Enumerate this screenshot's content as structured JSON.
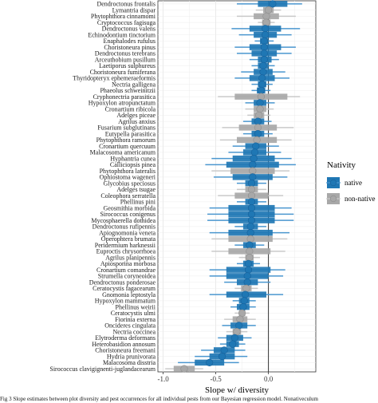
{
  "chart_data": {
    "type": "forest",
    "xlabel": "Slope w/ diversity",
    "xlim": [
      -1.05,
      0.45
    ],
    "x_ticks": [
      -1.0,
      -0.5,
      0.0
    ],
    "x_tick_labels": [
      "-1.0",
      "-0.5",
      "0.0"
    ],
    "reference_line": 0.0,
    "grid": true,
    "legend": {
      "title": "Nativity",
      "position": "right",
      "entries": [
        {
          "key": "native",
          "label": "native",
          "color": "#1f77b4"
        },
        {
          "key": "non-native",
          "label": "non-native",
          "color": "#a8a8a8"
        }
      ]
    },
    "rows": [
      {
        "label": "Dendroctonus frontalis",
        "nativity": "native",
        "estimate": 0.04,
        "inner": [
          -0.1,
          0.18
        ],
        "outer": [
          -0.3,
          0.32
        ]
      },
      {
        "label": "Lymantria dispar",
        "nativity": "non-native",
        "estimate": 0.0,
        "inner": [
          -0.05,
          0.05
        ],
        "outer": [
          -0.12,
          0.12
        ]
      },
      {
        "label": "Phytophthora cinnamomi",
        "nativity": "non-native",
        "estimate": -0.02,
        "inner": [
          -0.14,
          0.1
        ],
        "outer": [
          -0.3,
          0.26
        ]
      },
      {
        "label": "Cryptococcus fagisuga",
        "nativity": "non-native",
        "estimate": -0.02,
        "inner": [
          -0.06,
          0.02
        ],
        "outer": [
          -0.1,
          0.06
        ]
      },
      {
        "label": "Dendroctonus valens",
        "nativity": "native",
        "estimate": -0.03,
        "inner": [
          -0.18,
          0.12
        ],
        "outer": [
          -0.35,
          0.3
        ]
      },
      {
        "label": "Echinodontium tinctorium",
        "nativity": "native",
        "estimate": -0.03,
        "inner": [
          -0.14,
          0.08
        ],
        "outer": [
          -0.28,
          0.22
        ]
      },
      {
        "label": "Enaphalodes rufulus",
        "nativity": "native",
        "estimate": -0.04,
        "inner": [
          -0.08,
          0.0
        ],
        "outer": [
          -0.13,
          0.05
        ]
      },
      {
        "label": "Choristoneura pinus",
        "nativity": "native",
        "estimate": -0.04,
        "inner": [
          -0.18,
          0.12
        ],
        "outer": [
          -0.32,
          0.26
        ]
      },
      {
        "label": "Dendroctonus terebrans",
        "nativity": "native",
        "estimate": -0.04,
        "inner": [
          -0.16,
          0.08
        ],
        "outer": [
          -0.3,
          0.22
        ]
      },
      {
        "label": "Arceuthobium pusillum",
        "nativity": "native",
        "estimate": -0.04,
        "inner": [
          -0.1,
          0.03
        ],
        "outer": [
          -0.18,
          0.1
        ]
      },
      {
        "label": "Laetiporus sulphureus",
        "nativity": "native",
        "estimate": -0.05,
        "inner": [
          -0.1,
          0.0
        ],
        "outer": [
          -0.16,
          0.06
        ]
      },
      {
        "label": "Choristoneura fumiferana",
        "nativity": "native",
        "estimate": -0.05,
        "inner": [
          -0.14,
          0.04
        ],
        "outer": [
          -0.26,
          0.16
        ]
      },
      {
        "label": "Thyridopteryx ephemeraeformis",
        "nativity": "native",
        "estimate": -0.06,
        "inner": [
          -0.18,
          0.06
        ],
        "outer": [
          -0.32,
          0.2
        ]
      },
      {
        "label": "Nectria galligena",
        "nativity": "native",
        "estimate": -0.06,
        "inner": [
          -0.1,
          -0.02
        ],
        "outer": [
          -0.16,
          0.04
        ]
      },
      {
        "label": "Phaeolus schweinitzii",
        "nativity": "native",
        "estimate": -0.07,
        "inner": [
          -0.11,
          -0.03
        ],
        "outer": [
          -0.16,
          0.02
        ]
      },
      {
        "label": "Cryphonectria parasitica",
        "nativity": "non-native",
        "estimate": -0.07,
        "inner": [
          -0.32,
          0.18
        ],
        "outer": [
          -0.48,
          0.3
        ]
      },
      {
        "label": "Hypoxylon atropunctatum",
        "nativity": "native",
        "estimate": -0.08,
        "inner": [
          -0.14,
          -0.02
        ],
        "outer": [
          -0.22,
          0.06
        ]
      },
      {
        "label": "Cronartium ribicola",
        "nativity": "non-native",
        "estimate": -0.08,
        "inner": [
          -0.14,
          -0.02
        ],
        "outer": [
          -0.22,
          0.05
        ]
      },
      {
        "label": "Adelges piceae",
        "nativity": "non-native",
        "estimate": -0.09,
        "inner": [
          -0.14,
          -0.04
        ],
        "outer": [
          -0.2,
          0.02
        ]
      },
      {
        "label": "Agrilus anxius",
        "nativity": "native",
        "estimate": -0.1,
        "inner": [
          -0.16,
          -0.04
        ],
        "outer": [
          -0.24,
          0.03
        ]
      },
      {
        "label": "Fusarium subglutinans",
        "nativity": "non-native",
        "estimate": -0.1,
        "inner": [
          -0.28,
          0.08
        ],
        "outer": [
          -0.44,
          0.24
        ]
      },
      {
        "label": "Eutypella parasitica",
        "nativity": "native",
        "estimate": -0.1,
        "inner": [
          -0.16,
          -0.04
        ],
        "outer": [
          -0.24,
          0.04
        ]
      },
      {
        "label": "Phytophthora ramorum",
        "nativity": "non-native",
        "estimate": -0.11,
        "inner": [
          -0.3,
          0.08
        ],
        "outer": [
          -0.46,
          0.22
        ]
      },
      {
        "label": "Cronartium quercuum",
        "nativity": "native",
        "estimate": -0.12,
        "inner": [
          -0.22,
          -0.02
        ],
        "outer": [
          -0.34,
          0.1
        ]
      },
      {
        "label": "Malacosoma americanum",
        "nativity": "native",
        "estimate": -0.13,
        "inner": [
          -0.24,
          -0.02
        ],
        "outer": [
          -0.38,
          0.12
        ]
      },
      {
        "label": "Hyphantria cunea",
        "nativity": "native",
        "estimate": -0.14,
        "inner": [
          -0.34,
          0.06
        ],
        "outer": [
          -0.54,
          0.22
        ]
      },
      {
        "label": "Calliciopsis pinea",
        "nativity": "native",
        "estimate": -0.15,
        "inner": [
          -0.4,
          0.1
        ],
        "outer": [
          -0.6,
          0.26
        ]
      },
      {
        "label": "Phytophthora lateralis",
        "nativity": "non-native",
        "estimate": -0.15,
        "inner": [
          -0.36,
          0.06
        ],
        "outer": [
          -0.54,
          0.2
        ]
      },
      {
        "label": "Ophiostoma wageneri",
        "nativity": "native",
        "estimate": -0.15,
        "inner": [
          -0.34,
          0.04
        ],
        "outer": [
          -0.52,
          0.18
        ]
      },
      {
        "label": "Glycobius speciosus",
        "nativity": "native",
        "estimate": -0.16,
        "inner": [
          -0.22,
          -0.1
        ],
        "outer": [
          -0.3,
          -0.02
        ]
      },
      {
        "label": "Adelges tsugae",
        "nativity": "non-native",
        "estimate": -0.16,
        "inner": [
          -0.22,
          -0.1
        ],
        "outer": [
          -0.3,
          -0.02
        ]
      },
      {
        "label": "Coleophora serratella",
        "nativity": "non-native",
        "estimate": -0.16,
        "inner": [
          -0.32,
          0.0
        ],
        "outer": [
          -0.48,
          0.14
        ]
      },
      {
        "label": "Phellinus pini",
        "nativity": "native",
        "estimate": -0.16,
        "inner": [
          -0.22,
          -0.1
        ],
        "outer": [
          -0.3,
          -0.02
        ]
      },
      {
        "label": "Geosmithia morbida",
        "nativity": "native",
        "estimate": -0.16,
        "inner": [
          -0.38,
          0.06
        ],
        "outer": [
          -0.56,
          0.22
        ]
      },
      {
        "label": "Sirococcus conigenus",
        "nativity": "native",
        "estimate": -0.16,
        "inner": [
          -0.38,
          0.06
        ],
        "outer": [
          -0.58,
          0.24
        ]
      },
      {
        "label": "Mycosphaerella dothidea",
        "nativity": "native",
        "estimate": -0.16,
        "inner": [
          -0.38,
          0.06
        ],
        "outer": [
          -0.58,
          0.24
        ]
      },
      {
        "label": "Dendroctonus rufipennis",
        "nativity": "native",
        "estimate": -0.17,
        "inner": [
          -0.24,
          -0.1
        ],
        "outer": [
          -0.32,
          -0.02
        ]
      },
      {
        "label": "Apiognomonia veneta",
        "nativity": "native",
        "estimate": -0.17,
        "inner": [
          -0.38,
          0.04
        ],
        "outer": [
          -0.56,
          0.2
        ]
      },
      {
        "label": "Operophtera brumata",
        "nativity": "non-native",
        "estimate": -0.17,
        "inner": [
          -0.38,
          0.04
        ],
        "outer": [
          -0.54,
          0.18
        ]
      },
      {
        "label": "Peridermium harknessii",
        "nativity": "native",
        "estimate": -0.18,
        "inner": [
          -0.24,
          -0.12
        ],
        "outer": [
          -0.32,
          -0.04
        ]
      },
      {
        "label": "Euproctis chrysorrhoea",
        "nativity": "non-native",
        "estimate": -0.18,
        "inner": [
          -0.38,
          0.02
        ],
        "outer": [
          -0.54,
          0.16
        ]
      },
      {
        "label": "Agrilus planipennis",
        "nativity": "non-native",
        "estimate": -0.18,
        "inner": [
          -0.22,
          -0.14
        ],
        "outer": [
          -0.28,
          -0.08
        ]
      },
      {
        "label": "Apiosporina morbosa",
        "nativity": "native",
        "estimate": -0.19,
        "inner": [
          -0.24,
          -0.14
        ],
        "outer": [
          -0.3,
          -0.08
        ]
      },
      {
        "label": "Cronartium comandrae",
        "nativity": "native",
        "estimate": -0.19,
        "inner": [
          -0.4,
          0.02
        ],
        "outer": [
          -0.56,
          0.16
        ]
      },
      {
        "label": "Strumella coryneoidea",
        "nativity": "native",
        "estimate": -0.2,
        "inner": [
          -0.4,
          0.0
        ],
        "outer": [
          -0.56,
          0.14
        ]
      },
      {
        "label": "Dendroctonus ponderosae",
        "nativity": "native",
        "estimate": -0.2,
        "inner": [
          -0.3,
          -0.1
        ],
        "outer": [
          -0.42,
          0.02
        ]
      },
      {
        "label": "Ceratocystis fagacearum",
        "nativity": "non-native",
        "estimate": -0.21,
        "inner": [
          -0.26,
          -0.16
        ],
        "outer": [
          -0.32,
          -0.1
        ]
      },
      {
        "label": "Gnomonia leptostyla",
        "nativity": "native",
        "estimate": -0.22,
        "inner": [
          -0.4,
          -0.02
        ],
        "outer": [
          -0.56,
          0.14
        ]
      },
      {
        "label": "Hypoxylon mammatum",
        "nativity": "native",
        "estimate": -0.23,
        "inner": [
          -0.28,
          -0.18
        ],
        "outer": [
          -0.34,
          -0.12
        ]
      },
      {
        "label": "Phellinus weirii",
        "nativity": "native",
        "estimate": -0.24,
        "inner": [
          -0.3,
          -0.18
        ],
        "outer": [
          -0.36,
          -0.12
        ]
      },
      {
        "label": "Ceratocystis ulmi",
        "nativity": "non-native",
        "estimate": -0.25,
        "inner": [
          -0.28,
          -0.22
        ],
        "outer": [
          -0.32,
          -0.18
        ]
      },
      {
        "label": "Fiorinia externa",
        "nativity": "non-native",
        "estimate": -0.27,
        "inner": [
          -0.34,
          -0.2
        ],
        "outer": [
          -0.42,
          -0.12
        ]
      },
      {
        "label": "Oncideres cingulata",
        "nativity": "native",
        "estimate": -0.28,
        "inner": [
          -0.36,
          -0.2
        ],
        "outer": [
          -0.44,
          -0.12
        ]
      },
      {
        "label": "Nectria coccinea",
        "nativity": "non-native",
        "estimate": -0.3,
        "inner": [
          -0.34,
          -0.26
        ],
        "outer": [
          -0.4,
          -0.2
        ]
      },
      {
        "label": "Elytroderma deformans",
        "nativity": "native",
        "estimate": -0.32,
        "inner": [
          -0.4,
          -0.24
        ],
        "outer": [
          -0.48,
          -0.16
        ]
      },
      {
        "label": "Heterobasidion annosum",
        "nativity": "native",
        "estimate": -0.34,
        "inner": [
          -0.4,
          -0.28
        ],
        "outer": [
          -0.46,
          -0.22
        ]
      },
      {
        "label": "Choristoneura freemani",
        "nativity": "native",
        "estimate": -0.42,
        "inner": [
          -0.52,
          -0.32
        ],
        "outer": [
          -0.64,
          -0.22
        ]
      },
      {
        "label": "Hydria prunivorata",
        "nativity": "native",
        "estimate": -0.44,
        "inner": [
          -0.56,
          -0.32
        ],
        "outer": [
          -0.7,
          -0.2
        ]
      },
      {
        "label": "Malacosoma disstria",
        "nativity": "native",
        "estimate": -0.56,
        "inner": [
          -0.7,
          -0.42
        ],
        "outer": [
          -0.86,
          -0.28
        ]
      },
      {
        "label": "Sirococcus clavigignenti-juglandacearum",
        "nativity": "non-native",
        "estimate": -0.8,
        "inner": [
          -0.9,
          -0.7
        ],
        "outer": [
          -0.98,
          -0.62
        ]
      }
    ]
  },
  "caption": {
    "text": "Fig 3  Slope estimates between plot diversity and pest occurrences for all individual pests from our Bayesian regression model. Nonativeculum"
  }
}
